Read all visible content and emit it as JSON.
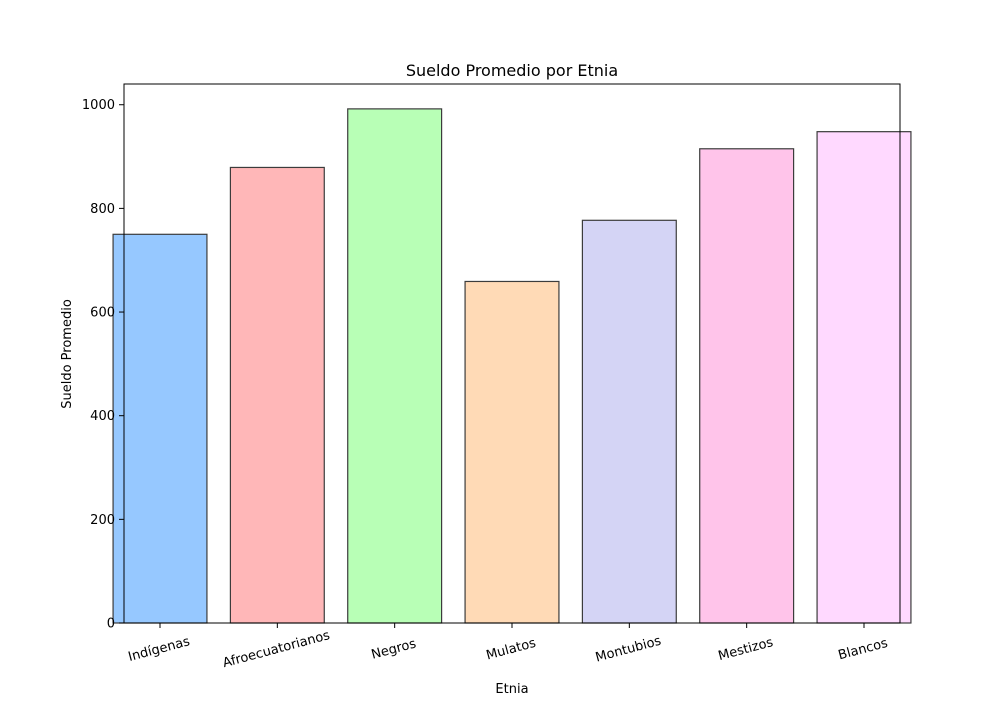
{
  "chart_data": {
    "type": "bar",
    "title": "Sueldo Promedio por Etnia",
    "xlabel": "Etnia",
    "ylabel": "Sueldo Promedio",
    "categories": [
      "Indígenas",
      "Afroecuatorianos",
      "Negros",
      "Mulatos",
      "Montubios",
      "Mestizos",
      "Blancos"
    ],
    "values": [
      750,
      879,
      992,
      659,
      777,
      915,
      948
    ],
    "colors": [
      "#96c8ff",
      "#ffb7b8",
      "#b8ffb6",
      "#ffdab6",
      "#d4d4f5",
      "#ffc4ea",
      "#ffd9ff"
    ],
    "edge_color": "#3c3c3c",
    "ylim": [
      0,
      1040
    ],
    "yticks": [
      0,
      200,
      400,
      600,
      800,
      1000
    ],
    "ytick_labels": [
      "0",
      "200",
      "400",
      "600",
      "800",
      "1000"
    ],
    "xtick_rotation": 15,
    "grid": false
  }
}
